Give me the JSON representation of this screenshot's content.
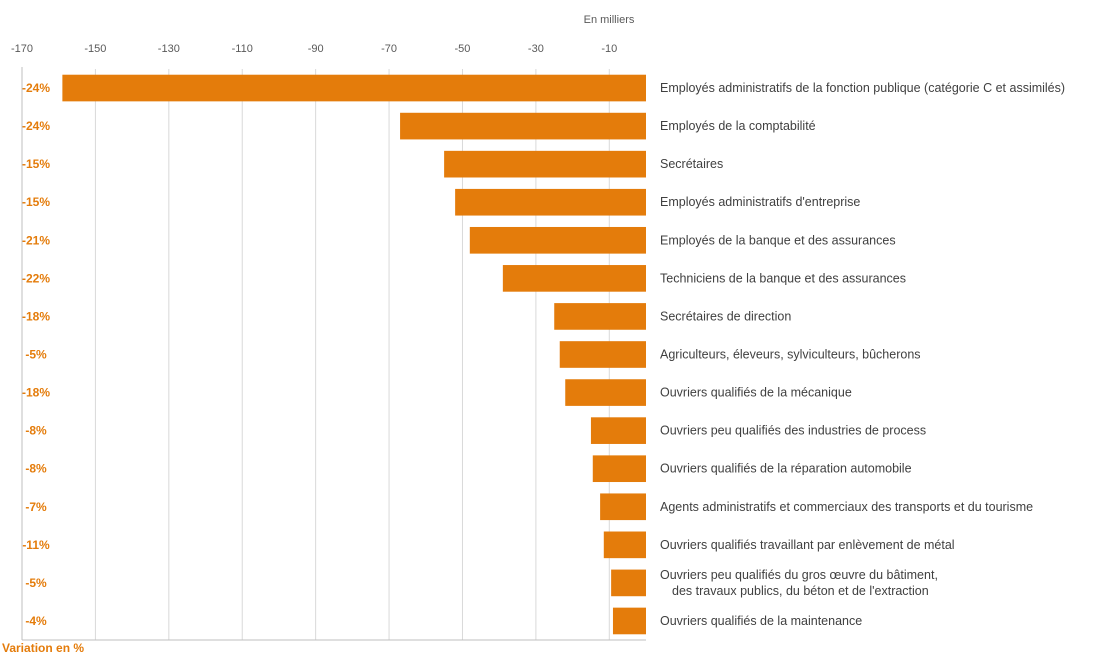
{
  "chart_data": {
    "type": "bar",
    "orientation": "horizontal",
    "unit_label": "En milliers",
    "footer_label": "Variation en %",
    "xlim": [
      -170,
      0
    ],
    "xticks": [
      -170,
      -150,
      -130,
      -110,
      -90,
      -70,
      -50,
      -30,
      -10
    ],
    "grid": true,
    "colors": {
      "bar": "#e47c0b",
      "percent_text": "#e47c0b",
      "grid": "#d9d9d9",
      "axis": "#bfbfbf"
    },
    "categories": [
      [
        "Employés administratifs de la fonction publique (catégorie C et assimilés)"
      ],
      [
        "Employés de la comptabilité"
      ],
      [
        "Secrétaires"
      ],
      [
        "Employés administratifs d'entreprise"
      ],
      [
        "Employés de la banque et des assurances"
      ],
      [
        "Techniciens de la banque et des assurances"
      ],
      [
        "Secrétaires de direction"
      ],
      [
        "Agriculteurs, éleveurs, sylviculteurs, bûcherons"
      ],
      [
        "Ouvriers qualifiés de la mécanique"
      ],
      [
        "Ouvriers peu qualifiés des industries de process"
      ],
      [
        "Ouvriers qualifiés de la réparation automobile"
      ],
      [
        "Agents administratifs et commerciaux des transports et du tourisme"
      ],
      [
        "Ouvriers qualifiés travaillant par enlèvement de métal"
      ],
      [
        "Ouvriers peu qualifiés du gros œuvre du bâtiment,",
        "des travaux publics, du béton et de l'extraction"
      ],
      [
        "Ouvriers qualifiés de la maintenance"
      ]
    ],
    "values": [
      -159,
      -67,
      -55,
      -52,
      -48,
      -39,
      -25,
      -23.5,
      -22,
      -15,
      -14.5,
      -12.5,
      -11.5,
      -9.5,
      -9
    ],
    "percent_labels": [
      "-24%",
      "-24%",
      "-15%",
      "-15%",
      "-21%",
      "-22%",
      "-18%",
      "-5%",
      "-18%",
      "-8%",
      "-8%",
      "-7%",
      "-11%",
      "-5%",
      "-4%"
    ]
  }
}
